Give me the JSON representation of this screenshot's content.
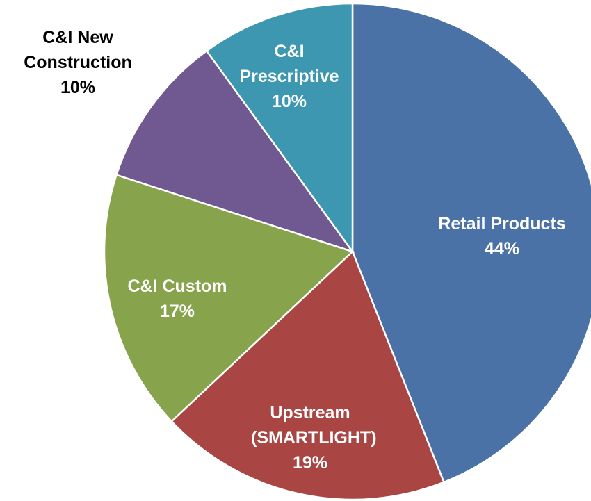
{
  "chart_data": {
    "type": "pie",
    "categories": [
      "Retail Products",
      "Upstream (SMARTLIGHT)",
      "C&I Custom",
      "C&I New Construction",
      "C&I Prescriptive"
    ],
    "values": [
      44,
      19,
      17,
      10,
      10
    ],
    "value_labels": [
      "44%",
      "19%",
      "17%",
      "10%",
      "10%"
    ],
    "colors": [
      "#4a72a6",
      "#a94643",
      "#87a44c",
      "#6f5990",
      "#3e97b0"
    ],
    "start_angle": 0,
    "direction": "clockwise"
  }
}
